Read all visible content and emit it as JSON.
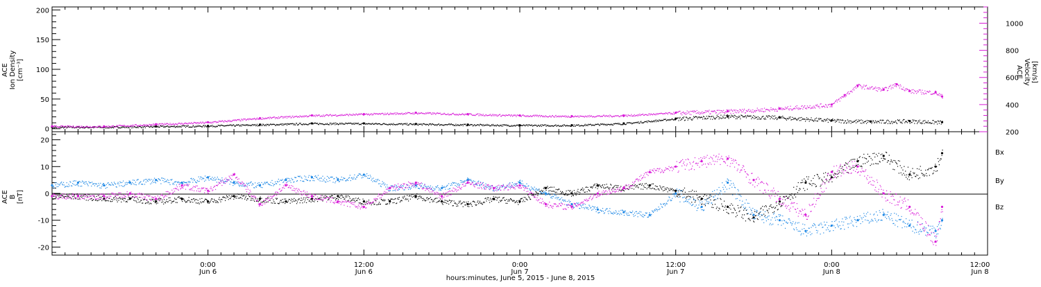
{
  "colors": {
    "black": "#000000",
    "magenta": "#d81bd8",
    "blue": "#1e88e5"
  },
  "xaxis": {
    "title": "hours:minutes, June  5, 2015 - June  8, 2015",
    "range_hours_from_jun5_0000": [
      0,
      72
    ],
    "ticks": [
      {
        "hour": 12,
        "time": "0:00",
        "date": "Jun 6"
      },
      {
        "hour": 24,
        "time": "12:00",
        "date": "Jun 6"
      },
      {
        "hour": 36,
        "time": "0:00",
        "date": "Jun 7"
      },
      {
        "hour": 48,
        "time": "12:00",
        "date": "Jun 7"
      },
      {
        "hour": 60,
        "time": "0:00",
        "date": "Jun 8"
      },
      {
        "hour": 72,
        "time": "12:00",
        "date": "Jun 8"
      }
    ]
  },
  "chart_data": [
    {
      "type": "scatter",
      "panel": "top",
      "left_axis": {
        "label_lines": [
          "ACE",
          "Ion Density"
        ],
        "unit": "[cm⁻³]",
        "ylim": [
          -5,
          205
        ],
        "ticks": [
          0,
          50,
          100,
          150,
          200
        ]
      },
      "right_axis": {
        "label_lines": [
          "ACE",
          "Velocity"
        ],
        "unit": "[km/s]",
        "ylim": [
          200,
          1120
        ],
        "ticks": [
          200,
          400,
          600,
          800,
          1000
        ]
      },
      "series": [
        {
          "axis": "left",
          "color": "black",
          "x": [
            0,
            4,
            8,
            12,
            16,
            20,
            24,
            28,
            32,
            36,
            40,
            44,
            48,
            52,
            56,
            60,
            63,
            66,
            68.5
          ],
          "y": [
            3,
            3,
            4,
            5,
            7,
            9,
            9,
            8,
            7,
            6,
            6,
            9,
            17,
            21,
            19,
            14,
            12,
            13,
            11
          ]
        },
        {
          "axis": "right",
          "color": "magenta",
          "x": [
            0,
            4,
            8,
            12,
            16,
            20,
            24,
            28,
            32,
            36,
            40,
            44,
            48,
            52,
            56,
            60,
            61,
            62,
            64,
            65,
            66,
            68,
            68.5
          ],
          "y": [
            240,
            240,
            255,
            270,
            300,
            320,
            330,
            340,
            330,
            320,
            315,
            320,
            340,
            350,
            370,
            400,
            470,
            540,
            510,
            550,
            500,
            490,
            460
          ]
        }
      ]
    },
    {
      "type": "scatter",
      "panel": "bottom",
      "left_axis": {
        "label_lines": [
          "ACE",
          "B"
        ],
        "unit": "[nT]",
        "ylim": [
          -23,
          23
        ],
        "ticks": [
          -20,
          -10,
          0,
          10,
          20
        ]
      },
      "series": [
        {
          "name": "Bx",
          "color": "black",
          "x": [
            0,
            2,
            4,
            6,
            8,
            10,
            12,
            14,
            16,
            18,
            20,
            22,
            24,
            26,
            28,
            30,
            32,
            34,
            36,
            38,
            40,
            42,
            44,
            46,
            48,
            50,
            52,
            54,
            56,
            58,
            60,
            62,
            64,
            66,
            68,
            68.5
          ],
          "y": [
            -1,
            -1,
            -2,
            -2,
            -3,
            -2,
            -3,
            -1,
            -2,
            -3,
            -2,
            -1,
            -3,
            -3,
            -1,
            -3,
            -4,
            -2,
            -3,
            2,
            0,
            3,
            2,
            3,
            1,
            -2,
            -5,
            -9,
            -3,
            4,
            6,
            12,
            14,
            7,
            10,
            15
          ]
        },
        {
          "name": "By",
          "color": "blue",
          "x": [
            0,
            2,
            4,
            6,
            8,
            10,
            12,
            14,
            16,
            18,
            20,
            22,
            24,
            26,
            28,
            30,
            32,
            34,
            36,
            38,
            40,
            42,
            44,
            46,
            48,
            50,
            52,
            54,
            56,
            58,
            60,
            62,
            64,
            66,
            68,
            68.5
          ],
          "y": [
            3,
            4,
            3,
            4,
            5,
            4,
            6,
            4,
            3,
            5,
            6,
            5,
            7,
            2,
            3,
            2,
            5,
            2,
            4,
            0,
            -4,
            -6,
            -7,
            -8,
            0,
            -5,
            4,
            -8,
            -10,
            -14,
            -12,
            -10,
            -8,
            -12,
            -14,
            -10
          ]
        },
        {
          "name": "Bz",
          "color": "magenta",
          "x": [
            0,
            2,
            4,
            6,
            8,
            10,
            12,
            14,
            16,
            18,
            20,
            22,
            24,
            26,
            28,
            30,
            32,
            34,
            36,
            38,
            40,
            42,
            44,
            46,
            48,
            50,
            52,
            54,
            56,
            58,
            60,
            62,
            64,
            66,
            68,
            68.5
          ],
          "y": [
            -1,
            -1,
            -1,
            0,
            -2,
            3,
            1,
            7,
            -4,
            3,
            -1,
            -3,
            -5,
            2,
            4,
            -1,
            4,
            2,
            3,
            -4,
            -5,
            0,
            2,
            8,
            10,
            12,
            13,
            5,
            -2,
            -8,
            8,
            10,
            0,
            -5,
            -18,
            -5
          ]
        }
      ]
    }
  ]
}
